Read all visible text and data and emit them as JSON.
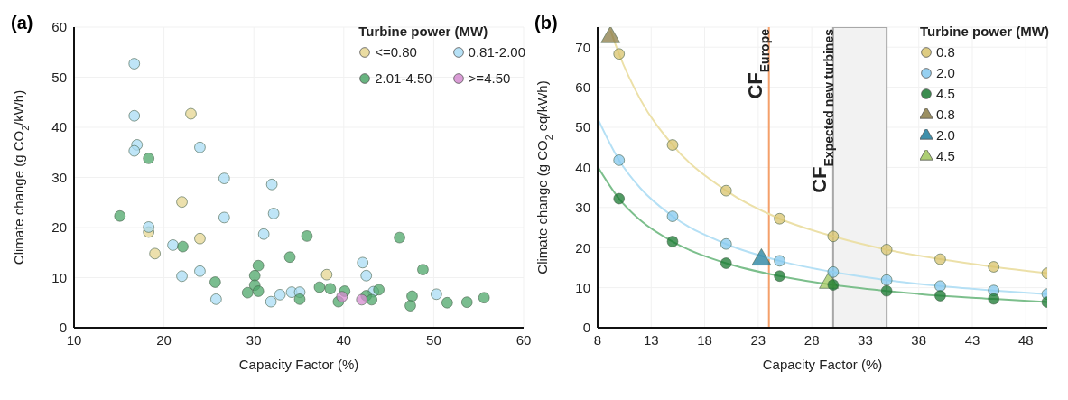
{
  "chart_data": [
    {
      "type": "scatter",
      "title": "(a)",
      "xlabel": "Capacity Factor (%)",
      "ylabel": "Climate change (g CO$_{2}$/kWh)",
      "legend_title": "Turbine power (MW)",
      "xlim": [
        10,
        60
      ],
      "xticks": [
        10,
        20,
        30,
        40,
        50,
        60
      ],
      "ylim": [
        0,
        60
      ],
      "yticks": [
        0,
        10,
        20,
        30,
        40,
        50,
        60
      ],
      "grid": true,
      "legend": "top right",
      "marker": "circle",
      "series": [
        {
          "name": "<=0.80",
          "color": "#e6d692",
          "x": [
            23.0,
            22.0,
            18.3,
            19.0,
            24.0,
            38.1
          ],
          "values": [
            42.7,
            25.1,
            19.1,
            14.8,
            17.8,
            10.6
          ]
        },
        {
          "name": "0.81-2.00",
          "color": "#a9dcf4",
          "x": [
            16.7,
            16.7,
            17.0,
            16.7,
            24.0,
            26.7,
            32.0,
            32.2,
            26.7,
            18.3,
            31.1,
            21.0,
            24.0,
            22.0,
            25.8,
            31.9,
            32.9,
            34.2,
            35.1,
            42.1,
            42.5,
            43.3,
            50.3
          ],
          "values": [
            52.7,
            42.3,
            36.5,
            35.3,
            36.0,
            29.8,
            28.6,
            22.8,
            22.0,
            20.1,
            18.7,
            16.5,
            11.3,
            10.3,
            5.7,
            5.2,
            6.6,
            7.1,
            7.1,
            13.0,
            10.4,
            7.2,
            6.7
          ]
        },
        {
          "name": "2.01-4.50",
          "color": "#4ea76a",
          "x": [
            18.3,
            15.1,
            22.1,
            25.7,
            30.5,
            30.1,
            30.1,
            29.3,
            30.5,
            34.0,
            35.9,
            35.1,
            37.3,
            38.5,
            40.1,
            39.4,
            42.5,
            43.1,
            43.9,
            46.2,
            48.8,
            47.6,
            47.4,
            51.5,
            53.7,
            55.6
          ],
          "values": [
            33.8,
            22.3,
            16.2,
            9.1,
            12.4,
            10.4,
            8.5,
            7.0,
            7.3,
            14.1,
            18.3,
            5.7,
            8.1,
            7.8,
            7.3,
            5.2,
            6.4,
            5.6,
            7.6,
            18.0,
            11.6,
            6.3,
            4.4,
            5.0,
            5.1,
            6.0
          ]
        },
        {
          "name": ">=4.50",
          "color": "#d48bcf",
          "x": [
            39.8,
            42.0
          ],
          "values": [
            6.2,
            5.6
          ]
        }
      ]
    },
    {
      "type": "scatter",
      "title": "(b)",
      "xlabel": "Capacity Factor (%)",
      "ylabel": "Climate change (g CO$_{2}$ eq/kWh)",
      "legend_title": "Turbine power (MW)",
      "xlim": [
        8,
        50
      ],
      "xticks": [
        8,
        13,
        18,
        23,
        28,
        33,
        38,
        43,
        48
      ],
      "ylim": [
        0,
        75
      ],
      "yticks": [
        0,
        10,
        20,
        30,
        40,
        50,
        60,
        70
      ],
      "grid": true,
      "legend": "top right",
      "marker": "circle",
      "ref_lines": [
        {
          "axis": "x",
          "value": 24,
          "label": "CF$_{Europe}$",
          "color": "#f4a06a"
        }
      ],
      "bands": [
        {
          "axis": "x",
          "from": 30,
          "to": 35,
          "label": "CF$_{Expected new turbines}$",
          "color": "#f2f2f2"
        }
      ],
      "series": [
        {
          "type": "line",
          "marker": "none",
          "color": "#ece0a8",
          "x": [
            9.2,
            10,
            12,
            15,
            20,
            25,
            30,
            35,
            40,
            45,
            50
          ],
          "values": [
            74.2,
            68.3,
            56.9,
            45.6,
            34.2,
            27.2,
            22.8,
            19.5,
            17.1,
            15.2,
            13.6
          ]
        },
        {
          "type": "line",
          "marker": "none",
          "color": "#b5e0f5",
          "x": [
            8,
            10,
            12,
            15,
            20,
            25,
            30,
            35,
            40,
            45,
            50
          ],
          "values": [
            52.2,
            41.8,
            34.8,
            27.8,
            20.9,
            16.7,
            13.9,
            11.9,
            10.4,
            9.3,
            8.4
          ]
        },
        {
          "type": "line",
          "marker": "none",
          "color": "#7cbf8c",
          "x": [
            8,
            10,
            12,
            15,
            20,
            25,
            30,
            35,
            40,
            45,
            50
          ],
          "values": [
            40.2,
            32.2,
            26.8,
            21.5,
            16.1,
            12.9,
            10.7,
            9.2,
            8.0,
            7.2,
            6.4
          ]
        },
        {
          "name": "0.8",
          "color": "#d8c36c",
          "x": [
            10,
            15,
            20,
            25,
            30,
            35,
            40,
            45,
            50
          ],
          "values": [
            68.3,
            45.6,
            34.2,
            27.2,
            22.8,
            19.5,
            17.1,
            15.2,
            13.6
          ]
        },
        {
          "name": "2.0",
          "color": "#84c8ee",
          "x": [
            10,
            15,
            20,
            25,
            30,
            35,
            40,
            45,
            50
          ],
          "values": [
            41.8,
            27.8,
            20.9,
            16.7,
            13.9,
            11.9,
            10.4,
            9.3,
            8.4
          ]
        },
        {
          "name": "4.5",
          "color": "#17782f",
          "x": [
            10,
            15,
            20,
            25,
            30,
            35,
            40,
            45,
            50
          ],
          "values": [
            32.2,
            21.5,
            16.1,
            12.9,
            10.7,
            9.2,
            8.0,
            7.2,
            6.4
          ]
        },
        {
          "name": "0.8",
          "marker": "triangle",
          "color": "#8a7b45",
          "x": [
            9.2
          ],
          "values": [
            72.5
          ]
        },
        {
          "name": "2.0",
          "marker": "triangle",
          "color": "#1e7d9c",
          "x": [
            23.3
          ],
          "values": [
            17.0
          ]
        },
        {
          "name": "4.5",
          "marker": "triangle",
          "color": "#9fc65c",
          "x": [
            29.6
          ],
          "values": [
            11.2
          ]
        }
      ]
    }
  ]
}
